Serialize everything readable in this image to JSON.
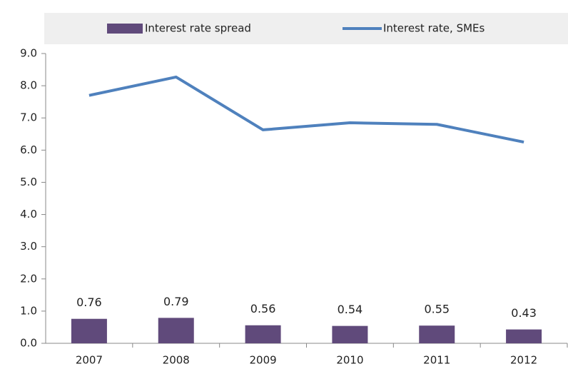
{
  "chart_data": {
    "type": "bar_line",
    "categories": [
      "2007",
      "2008",
      "2009",
      "2010",
      "2011",
      "2012"
    ],
    "series": [
      {
        "name": "Interest rate spread",
        "type": "bar",
        "color": "#604a7b",
        "values": [
          0.76,
          0.79,
          0.56,
          0.54,
          0.55,
          0.43
        ]
      },
      {
        "name": "Interest rate, SMEs",
        "type": "line",
        "color": "#4f81bd",
        "values": [
          7.7,
          8.27,
          6.63,
          6.85,
          6.8,
          6.25
        ]
      }
    ],
    "ylim": [
      0,
      9
    ],
    "yticks": [
      {
        "value": 0,
        "label": "0.0"
      },
      {
        "value": 1,
        "label": "1.0"
      },
      {
        "value": 2,
        "label": "2.0"
      },
      {
        "value": 3,
        "label": "3.0"
      },
      {
        "value": 4,
        "label": "4.0"
      },
      {
        "value": 5,
        "label": "5.0"
      },
      {
        "value": 6,
        "label": "6.0"
      },
      {
        "value": 7,
        "label": "7.0"
      },
      {
        "value": 8,
        "label": "8.0"
      },
      {
        "value": 9,
        "label": "9.0"
      }
    ],
    "grid": false,
    "legend": "top"
  }
}
